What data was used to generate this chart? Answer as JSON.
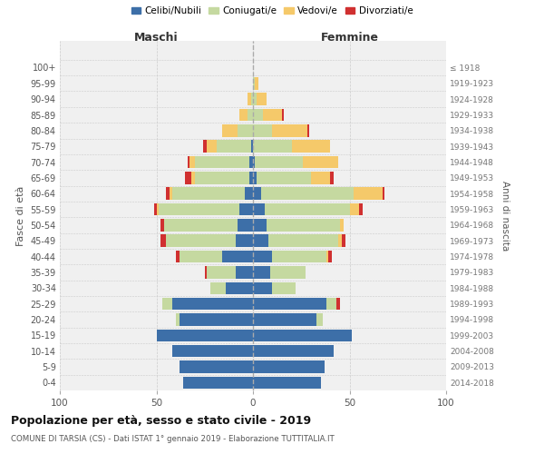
{
  "age_groups": [
    "0-4",
    "5-9",
    "10-14",
    "15-19",
    "20-24",
    "25-29",
    "30-34",
    "35-39",
    "40-44",
    "45-49",
    "50-54",
    "55-59",
    "60-64",
    "65-69",
    "70-74",
    "75-79",
    "80-84",
    "85-89",
    "90-94",
    "95-99",
    "100+"
  ],
  "birth_years": [
    "2014-2018",
    "2009-2013",
    "2004-2008",
    "1999-2003",
    "1994-1998",
    "1989-1993",
    "1984-1988",
    "1979-1983",
    "1974-1978",
    "1969-1973",
    "1964-1968",
    "1959-1963",
    "1954-1958",
    "1949-1953",
    "1944-1948",
    "1939-1943",
    "1934-1938",
    "1929-1933",
    "1924-1928",
    "1919-1923",
    "≤ 1918"
  ],
  "colors": {
    "celibi": "#3d6fa8",
    "coniugati": "#c5d9a0",
    "vedovi": "#f5c96a",
    "divorziati": "#d03030"
  },
  "maschi": {
    "celibi": [
      36,
      38,
      42,
      50,
      38,
      42,
      14,
      9,
      16,
      9,
      8,
      7,
      4,
      2,
      2,
      1,
      0,
      0,
      0,
      0,
      0
    ],
    "coniugati": [
      0,
      0,
      0,
      0,
      2,
      5,
      8,
      15,
      22,
      36,
      38,
      42,
      38,
      28,
      28,
      18,
      8,
      3,
      1,
      0,
      0
    ],
    "vedovi": [
      0,
      0,
      0,
      0,
      0,
      0,
      0,
      0,
      0,
      0,
      0,
      1,
      1,
      2,
      3,
      5,
      8,
      4,
      2,
      0,
      0
    ],
    "divorziati": [
      0,
      0,
      0,
      0,
      0,
      0,
      0,
      1,
      2,
      3,
      2,
      1,
      2,
      3,
      1,
      2,
      0,
      0,
      0,
      0,
      0
    ]
  },
  "femmine": {
    "celibi": [
      35,
      37,
      42,
      51,
      33,
      38,
      10,
      9,
      10,
      8,
      7,
      6,
      4,
      2,
      1,
      0,
      0,
      0,
      0,
      0,
      0
    ],
    "coniugati": [
      0,
      0,
      0,
      0,
      3,
      5,
      12,
      18,
      28,
      36,
      38,
      44,
      48,
      28,
      25,
      20,
      10,
      5,
      2,
      1,
      0
    ],
    "vedovi": [
      0,
      0,
      0,
      0,
      0,
      0,
      0,
      0,
      1,
      2,
      2,
      5,
      15,
      10,
      18,
      20,
      18,
      10,
      5,
      2,
      0
    ],
    "divorziati": [
      0,
      0,
      0,
      0,
      0,
      2,
      0,
      0,
      2,
      2,
      0,
      2,
      1,
      2,
      0,
      0,
      1,
      1,
      0,
      0,
      0
    ]
  },
  "xlim": 100,
  "title": "Popolazione per età, sesso e stato civile - 2019",
  "subtitle": "COMUNE DI TARSIA (CS) - Dati ISTAT 1° gennaio 2019 - Elaborazione TUTTITALIA.IT",
  "ylabel_left": "Fasce di età",
  "ylabel_right": "Anni di nascita",
  "xlabel_left": "Maschi",
  "xlabel_right": "Femmine",
  "legend_labels": [
    "Celibi/Nubili",
    "Coniugati/e",
    "Vedovi/e",
    "Divorziati/e"
  ],
  "bg_color": "#f0f0f0",
  "plot_bg": "#ffffff"
}
